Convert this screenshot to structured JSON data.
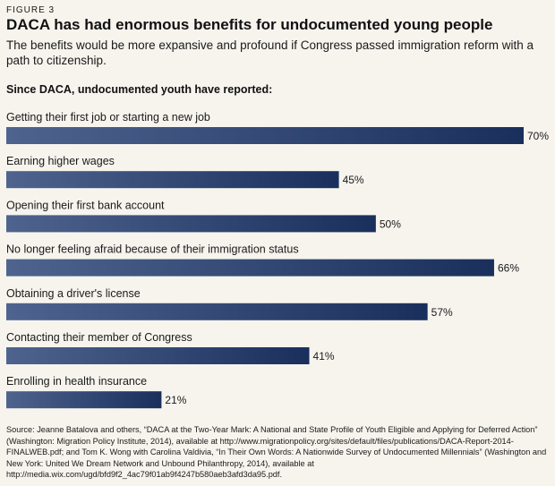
{
  "figure_label": "FIGURE 3",
  "title": "DACA has had enormous benefits for undocumented young people",
  "subtitle": "The benefits would be more expansive and profound if Congress passed immigration reform with a path to citizenship.",
  "section_title": "Since DACA, undocumented youth have reported:",
  "source": "Source: Jeanne Batalova and others, “DACA at the Two-Year Mark: A National and State Profile of Youth Eligible and Applying for Deferred Action” (Washington: Migration Policy Institute, 2014), available at http://www.migrationpolicy.org/sites/default/files/publications/DACA-Report-2014-FINALWEB.pdf; and Tom K. Wong with Carolina Valdivia, “In Their Own Words: A Nationwide Survey of Undocumented Millennials” (Washington and New York: United We Dream Network and Unbound Philanthropy, 2014), available at http://media.wix.com/ugd/bfd9f2_4ac79f01ab9f4247b580aeb3afd3da95.pdf.",
  "colors": {
    "background": "#f7f4ee",
    "bar_light": "#4e648e",
    "bar_dark": "#1a2f5c"
  },
  "chart_data": {
    "type": "bar",
    "orientation": "horizontal",
    "categories": [
      "Getting their first job or starting a new job",
      "Earning higher wages",
      "Opening their first bank account",
      "No longer feeling afraid because of their immigration status",
      "Obtaining a driver's license",
      "Contacting their member of Congress",
      "Enrolling in health insurance"
    ],
    "values": [
      70,
      45,
      50,
      66,
      57,
      41,
      21
    ],
    "value_labels": [
      "70%",
      "45%",
      "50%",
      "66%",
      "57%",
      "41%",
      "21%"
    ],
    "unit": "%",
    "xlim": [
      0,
      70
    ],
    "grid": false,
    "legend": "none"
  }
}
